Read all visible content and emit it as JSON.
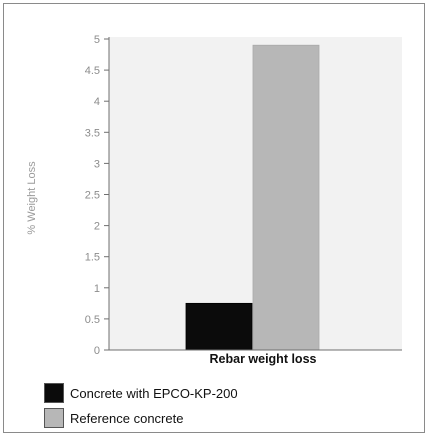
{
  "chart_data": {
    "type": "bar",
    "categories": [
      "Rebar weight loss"
    ],
    "series": [
      {
        "name": "Concrete with EPCO-KP-200",
        "values": [
          0.75
        ],
        "color": "#0b0b0b"
      },
      {
        "name": "Reference concrete",
        "values": [
          4.9
        ],
        "color": "#b7b7b7"
      }
    ],
    "title": "",
    "xlabel": "",
    "ylabel": "% Weight Loss",
    "ylim": [
      0,
      5
    ],
    "yticks": [
      "0",
      "0.5",
      "1",
      "1.5",
      "2",
      "2.5",
      "3",
      "3.5",
      "4",
      "4.5",
      "5"
    ],
    "grid": false,
    "legend_position": "bottom-left",
    "plot_background": "#f2f2f2",
    "axis_color": "#6f6f6f"
  }
}
